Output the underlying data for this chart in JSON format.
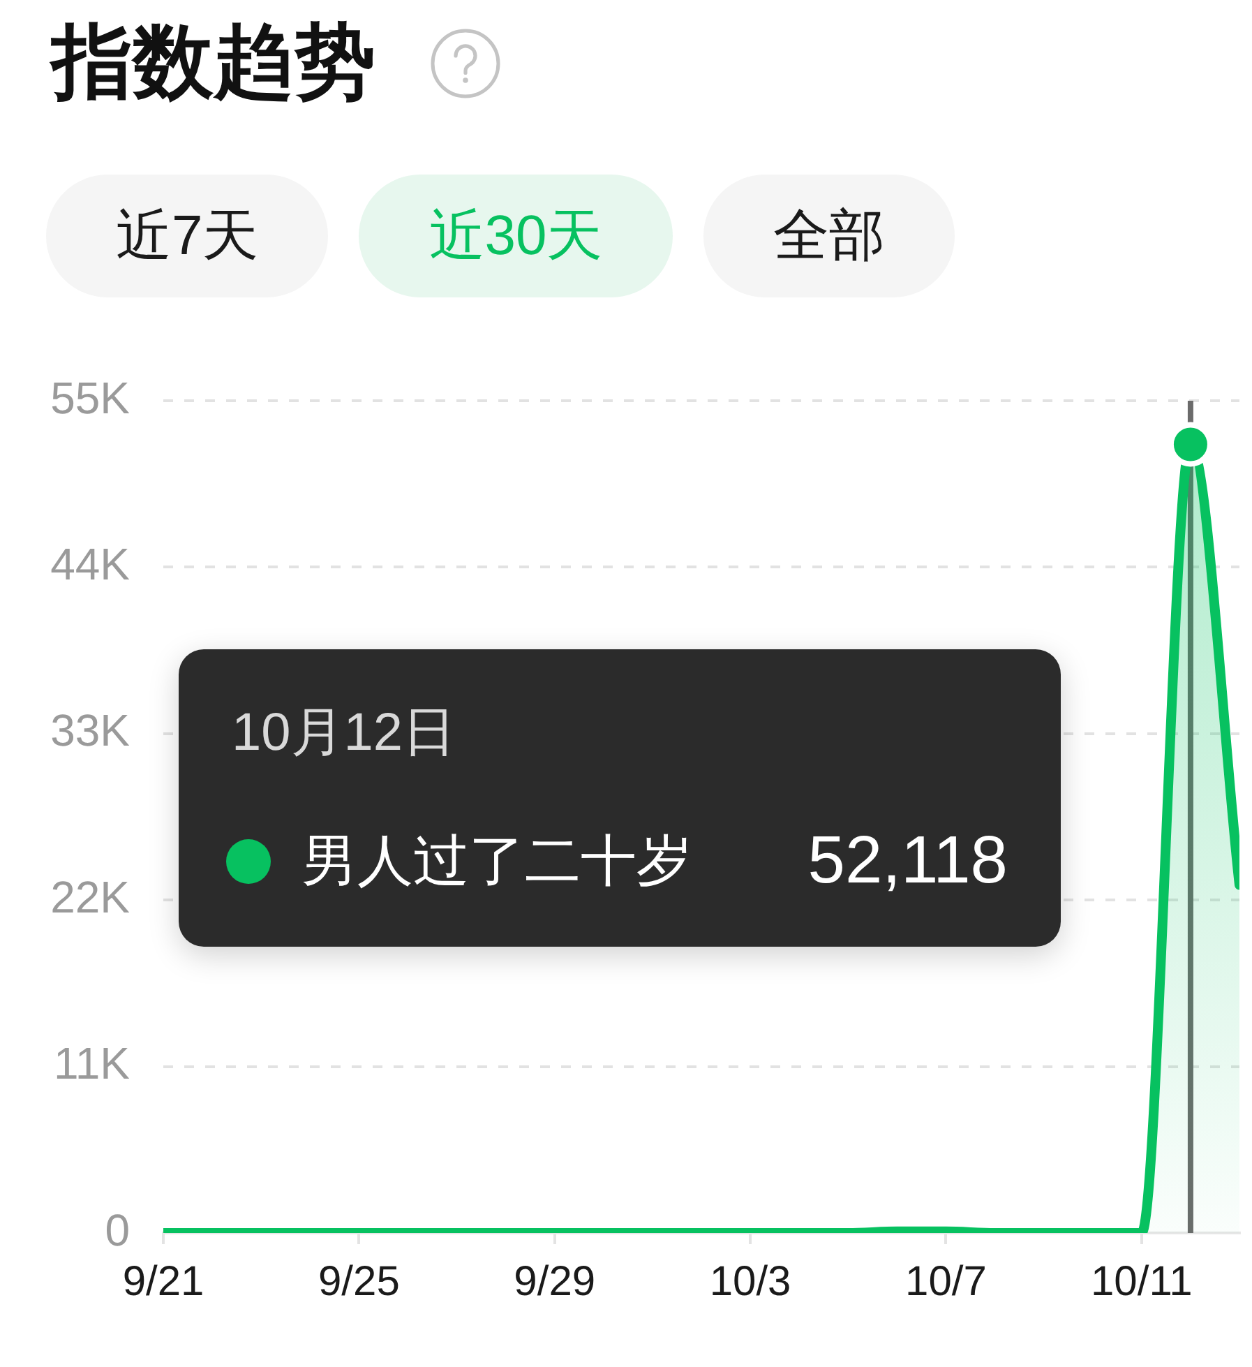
{
  "chart_data": {
    "type": "area",
    "title": "指数趋势",
    "x": [
      "--09-21",
      "--09-22",
      "--09-23",
      "--09-24",
      "--09-25",
      "--09-26",
      "--09-27",
      "--09-28",
      "--09-29",
      "--09-30",
      "--10-01",
      "--10-02",
      "--10-03",
      "--10-04",
      "--10-05",
      "--10-06",
      "--10-07",
      "--10-08",
      "--10-09",
      "--10-10",
      "--10-11",
      "--10-12",
      "--10-13"
    ],
    "series": [
      {
        "name": "男人过了二十岁",
        "color": "#07c160",
        "values": [
          0,
          0,
          0,
          0,
          0,
          0,
          0,
          0,
          0,
          0,
          0,
          0,
          0,
          0,
          0,
          100,
          100,
          0,
          0,
          0,
          0,
          52118,
          23000
        ]
      }
    ],
    "xlim": [
      "--09-21",
      "--10-13"
    ],
    "xticks": [
      {
        "value": "--09-21",
        "label": "9/21"
      },
      {
        "value": "--09-25",
        "label": "9/25"
      },
      {
        "value": "--09-29",
        "label": "9/29"
      },
      {
        "value": "--10-03",
        "label": "10/3"
      },
      {
        "value": "--10-07",
        "label": "10/7"
      },
      {
        "value": "--10-11",
        "label": "10/11"
      }
    ],
    "ylim": [
      0,
      55000
    ],
    "yticks": [
      0,
      {
        "value": 11000,
        "label": "11K"
      },
      {
        "value": 22000,
        "label": "22K"
      },
      {
        "value": 33000,
        "label": "33K"
      },
      {
        "value": 44000,
        "label": "44K"
      },
      {
        "value": 55000,
        "label": "55K"
      }
    ],
    "grid": "y",
    "legend": "left",
    "marker": "none",
    "ref_lines": [
      {
        "axis": "x",
        "value": "--10-12",
        "color": "#6b6b6b"
      }
    ],
    "annotations": [
      "近7天",
      "近30天",
      "全部",
      "10月12日",
      "52,118"
    ]
  }
}
